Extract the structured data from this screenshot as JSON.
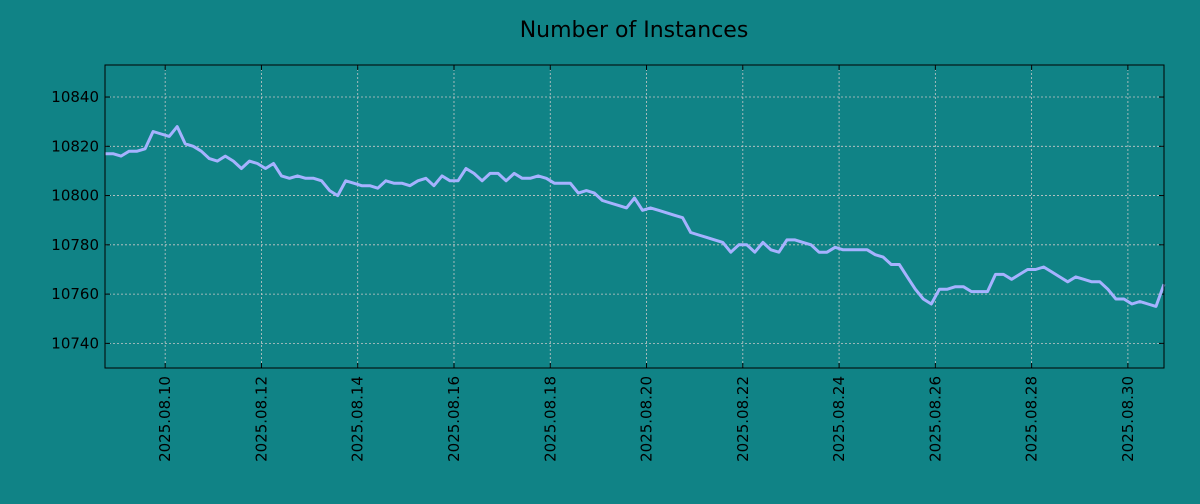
{
  "chart_data": {
    "type": "line",
    "title": "Number of Instances",
    "xlabel": "",
    "ylabel": "",
    "x_start": "2025-08-08 18:00",
    "x_end": "2025-08-30 18:00",
    "ylim": [
      10730,
      10853
    ],
    "yticks": [
      10740,
      10760,
      10780,
      10800,
      10820,
      10840
    ],
    "xticks": [
      "2025.08.10",
      "2025.08.12",
      "2025.08.14",
      "2025.08.16",
      "2025.08.18",
      "2025.08.20",
      "2025.08.22",
      "2025.08.24",
      "2025.08.26",
      "2025.08.28",
      "2025.08.30"
    ],
    "grid": true,
    "line_color": "#a6b2ff",
    "background_color": "#108386",
    "x_interval_hours": 4,
    "values": [
      10817,
      10817,
      10816,
      10818,
      10818,
      10819,
      10826,
      10825,
      10824,
      10828,
      10821,
      10820,
      10818,
      10815,
      10814,
      10816,
      10814,
      10811,
      10814,
      10813,
      10811,
      10813,
      10808,
      10807,
      10808,
      10807,
      10807,
      10806,
      10802,
      10800,
      10806,
      10805,
      10804,
      10804,
      10803,
      10806,
      10805,
      10805,
      10804,
      10806,
      10807,
      10804,
      10808,
      10806,
      10806,
      10811,
      10809,
      10806,
      10809,
      10809,
      10806,
      10809,
      10807,
      10807,
      10808,
      10807,
      10805,
      10805,
      10805,
      10801,
      10802,
      10801,
      10798,
      10797,
      10796,
      10795,
      10799,
      10794,
      10795,
      10794,
      10793,
      10792,
      10791,
      10785,
      10784,
      10783,
      10782,
      10781,
      10777,
      10780,
      10780,
      10777,
      10781,
      10778,
      10777,
      10782,
      10782,
      10781,
      10780,
      10777,
      10777,
      10779,
      10778,
      10778,
      10778,
      10778,
      10776,
      10775,
      10772,
      10772,
      10767,
      10762,
      10758,
      10756,
      10762,
      10762,
      10763,
      10763,
      10761,
      10761,
      10761,
      10768,
      10768,
      10766,
      10768,
      10770,
      10770,
      10771,
      10769,
      10767,
      10765,
      10767,
      10766,
      10765,
      10765,
      10762,
      10758,
      10758,
      10756,
      10757,
      10756,
      10755,
      10764
    ]
  }
}
